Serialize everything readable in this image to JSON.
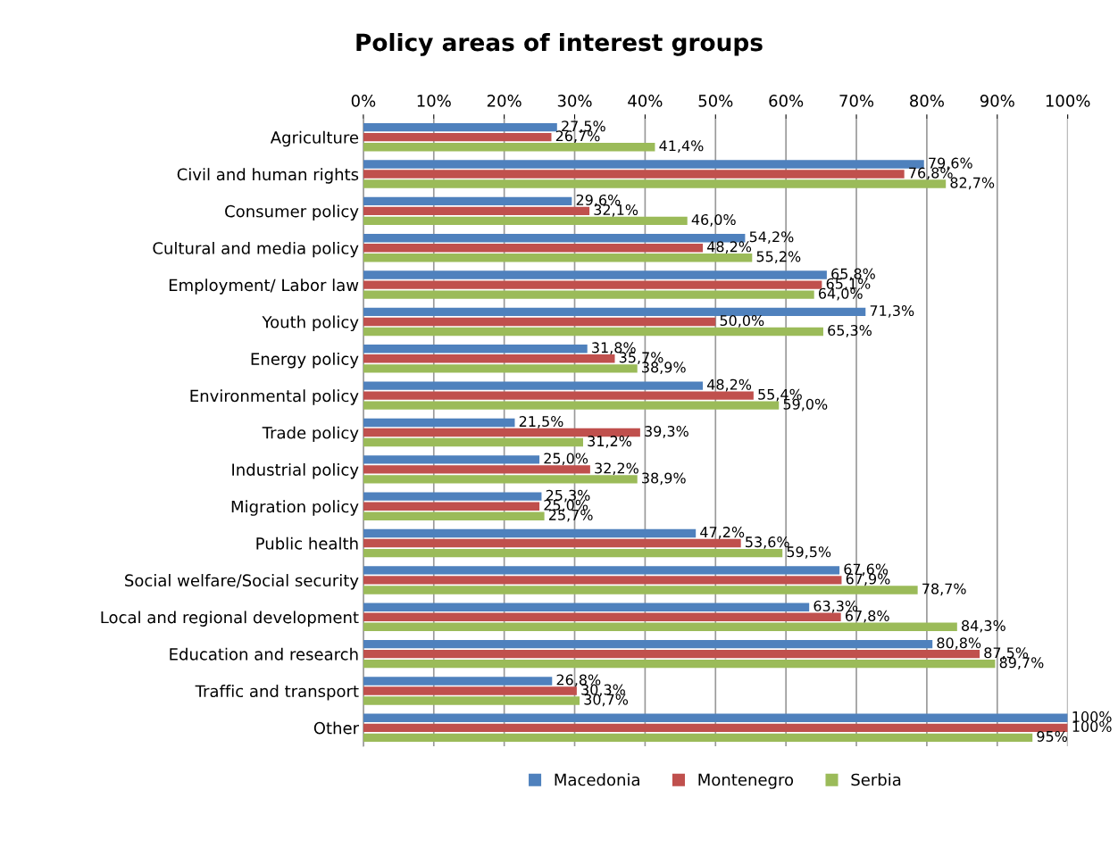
{
  "chart_data": {
    "type": "bar",
    "orientation": "horizontal",
    "title": "Policy areas of interest groups",
    "categories": [
      "Agriculture",
      "Civil and human rights",
      "Consumer policy",
      "Cultural and media policy",
      "Employment/ Labor law",
      "Youth policy",
      "Energy policy",
      "Environmental policy",
      "Trade policy",
      "Industrial policy",
      "Migration policy",
      "Public health",
      "Social welfare/Social security",
      "Local and regional development",
      "Education and research",
      "Traffic and transport",
      "Other"
    ],
    "series": [
      {
        "name": "Macedonia",
        "color": "#4f81bd",
        "values": [
          27.5,
          79.6,
          29.6,
          54.2,
          65.8,
          71.3,
          31.8,
          48.2,
          21.5,
          25.0,
          25.3,
          47.2,
          67.6,
          63.3,
          80.8,
          26.8,
          100
        ],
        "value_labels": [
          "27,5%",
          "79,6%",
          "29,6%",
          "54,2%",
          "65,8%",
          "71,3%",
          "31,8%",
          "48,2%",
          "21,5%",
          "25,0%",
          "25,3%",
          "47,2%",
          "67,6%",
          "63,3%",
          "80,8%",
          "26,8%",
          "100%"
        ]
      },
      {
        "name": "Montenegro",
        "color": "#c0504d",
        "values": [
          26.7,
          76.8,
          32.1,
          48.2,
          65.1,
          50.0,
          35.7,
          55.4,
          39.3,
          32.2,
          25.0,
          53.6,
          67.9,
          67.8,
          87.5,
          30.3,
          100
        ],
        "value_labels": [
          "26,7%",
          "76,8%",
          "32,1%",
          "48,2%",
          "65,1%",
          "50,0%",
          "35,7%",
          "55,4%",
          "39,3%",
          "32,2%",
          "25,0%",
          "53,6%",
          "67,9%",
          "67,8%",
          "87,5%",
          "30,3%",
          "100%"
        ]
      },
      {
        "name": "Serbia",
        "color": "#9bbb59",
        "values": [
          41.4,
          82.7,
          46.0,
          55.2,
          64.0,
          65.3,
          38.9,
          59.0,
          31.2,
          38.9,
          25.7,
          59.5,
          78.7,
          84.3,
          89.7,
          30.7,
          95
        ],
        "value_labels": [
          "41,4%",
          "82,7%",
          "46,0%",
          "55,2%",
          "64,0%",
          "65,3%",
          "38,9%",
          "59,0%",
          "31,2%",
          "38,9%",
          "25,7%",
          "59,5%",
          "78,7%",
          "84,3%",
          "89,7%",
          "30,7%",
          "95%"
        ]
      }
    ],
    "xlim": [
      0,
      100
    ],
    "xticks": [
      {
        "value": 0,
        "label": "0%"
      },
      {
        "value": 10,
        "label": "10%"
      },
      {
        "value": 20,
        "label": "20%"
      },
      {
        "value": 30,
        "label": "30%"
      },
      {
        "value": 40,
        "label": "40%"
      },
      {
        "value": 50,
        "label": "50%"
      },
      {
        "value": 60,
        "label": "60%"
      },
      {
        "value": 70,
        "label": "70%"
      },
      {
        "value": 80,
        "label": "80%"
      },
      {
        "value": 90,
        "label": "90%"
      },
      {
        "value": 100,
        "label": "100%"
      }
    ],
    "grid": "x",
    "legend": "bottom"
  }
}
